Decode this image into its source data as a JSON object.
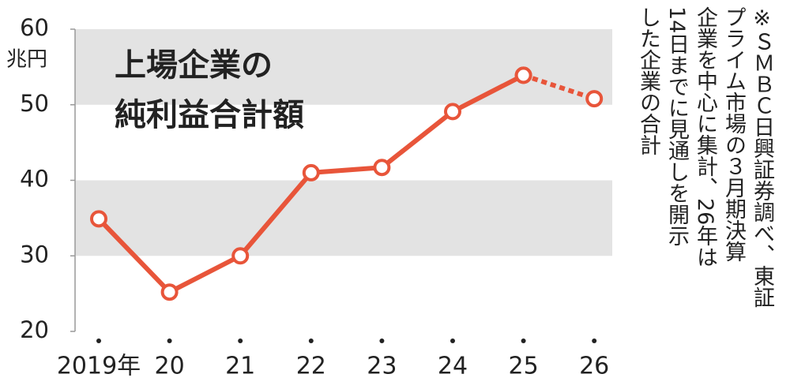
{
  "chart_data": {
    "type": "line",
    "title": [
      "上場企業の",
      "純利益合計額"
    ],
    "y_unit": "兆円",
    "note": [
      "※ＳＭＢＣ日興証券調べ、東証",
      "プライム市場の３月期決算",
      "企業を中心に集計、26年は",
      "14日までに見通しを開示",
      "した企業の合計"
    ],
    "categories": [
      "2019年",
      "20",
      "21",
      "22",
      "23",
      "24",
      "25",
      "26"
    ],
    "series": [
      {
        "color": "#e8553a",
        "dashed": false,
        "values": [
          34.9,
          25.2,
          30.0,
          41.0,
          41.7,
          49.1,
          53.9,
          null
        ]
      },
      {
        "color": "#e8553a",
        "dashed": true,
        "values": [
          null,
          null,
          null,
          null,
          null,
          null,
          53.9,
          50.8
        ]
      }
    ],
    "ylim": [
      20,
      60
    ],
    "yticks": [
      20,
      30,
      40,
      50,
      60
    ],
    "grid_bands": [
      [
        30,
        40
      ],
      [
        50,
        60
      ]
    ]
  }
}
